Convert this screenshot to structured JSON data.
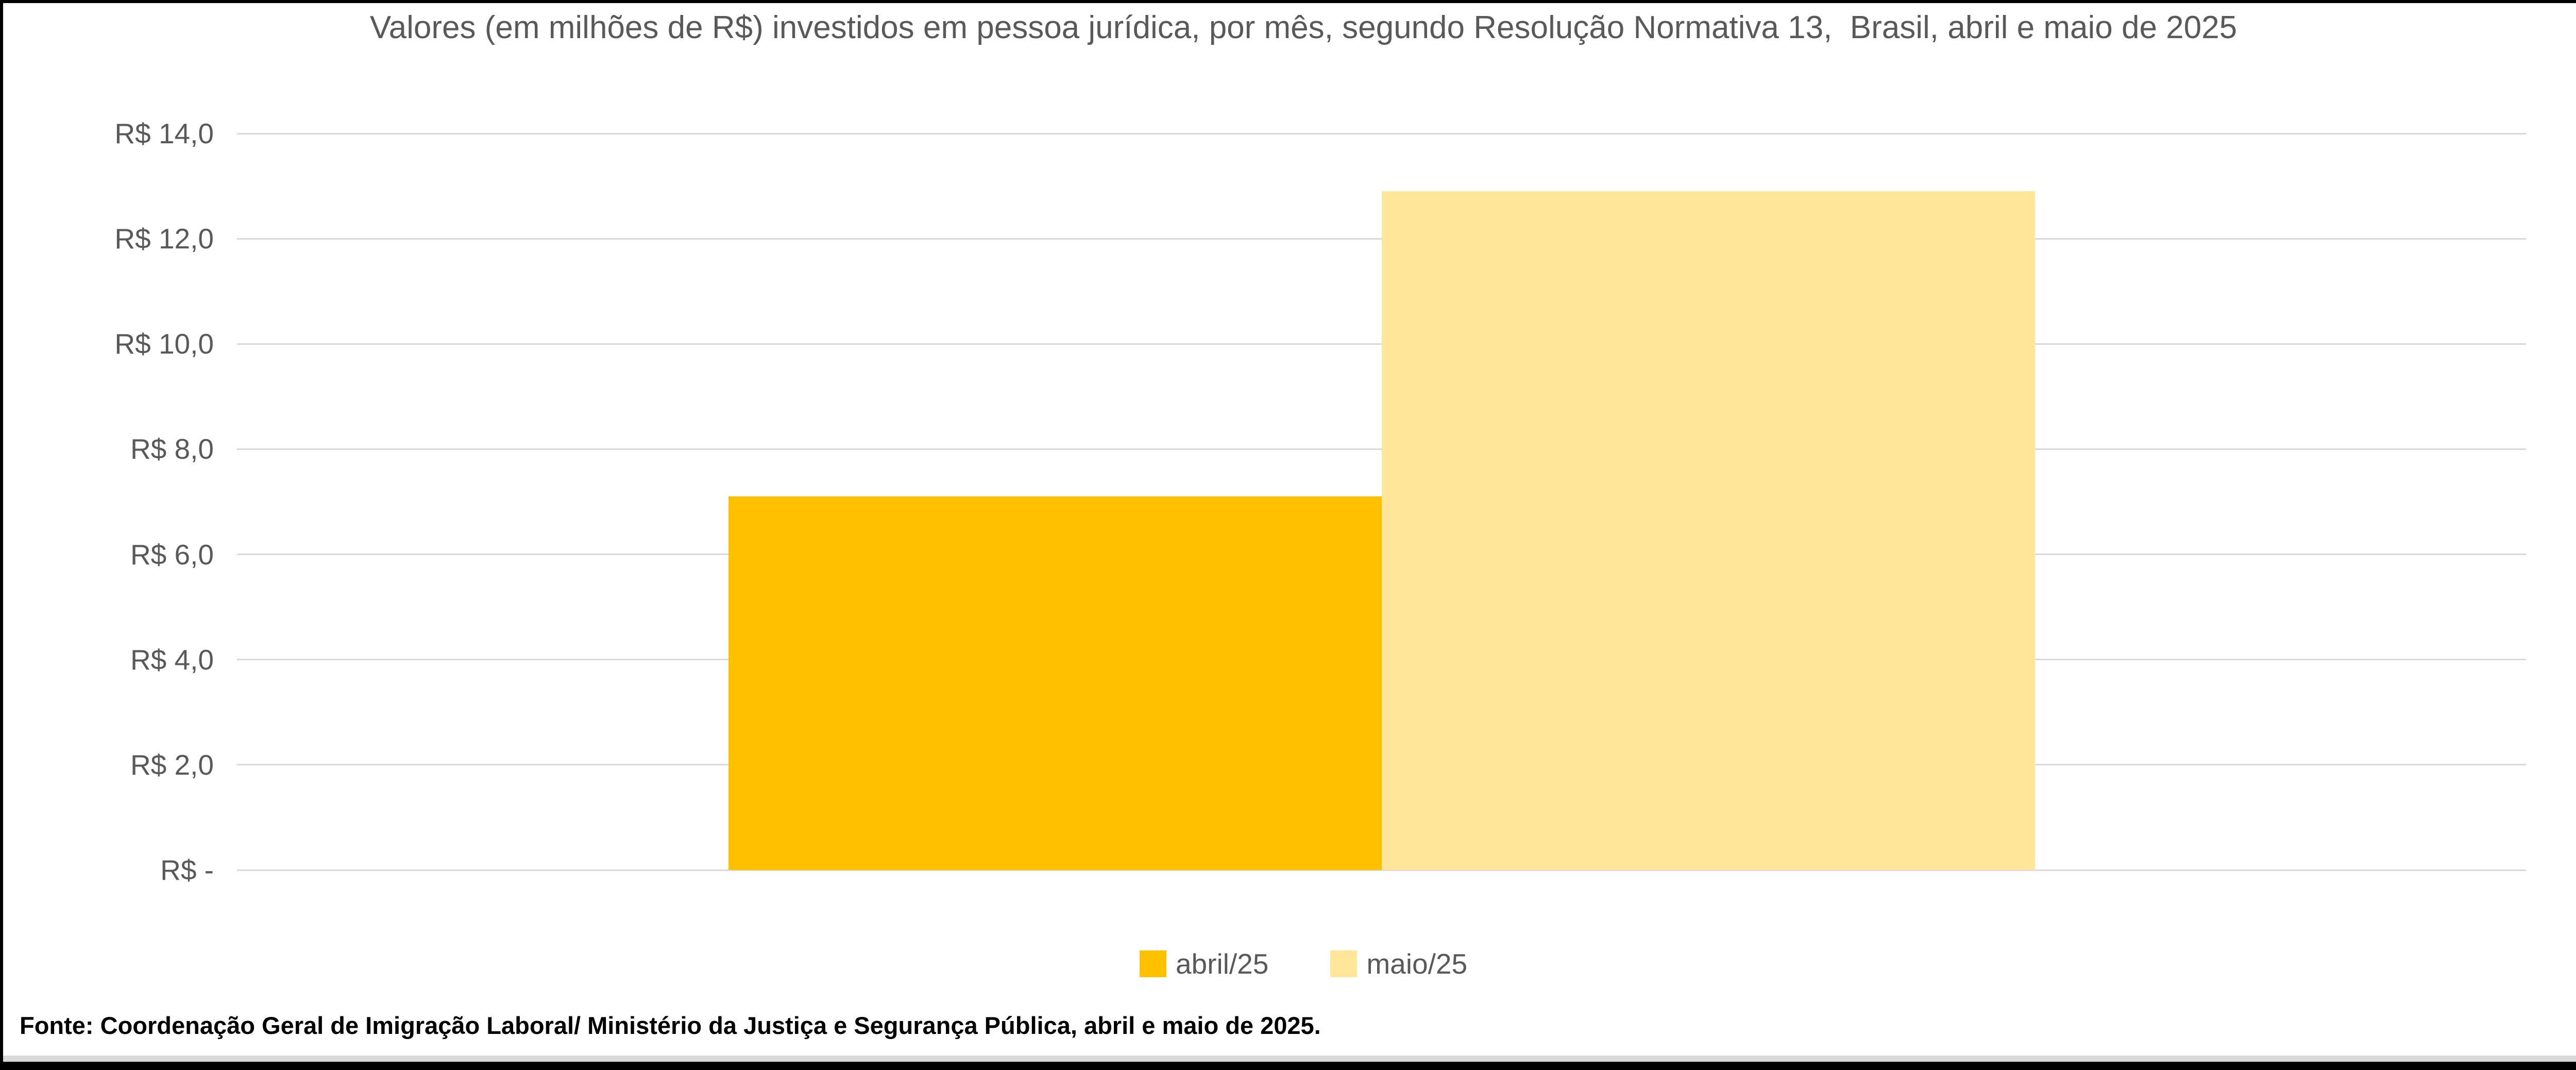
{
  "chart_data": {
    "type": "bar",
    "title": "Valores (em milhões de R$) investidos em pessoa jurídica, por mês, segundo Resolução Normativa 13,  Brasil, abril e maio de 2025",
    "categories": [
      ""
    ],
    "series": [
      {
        "name": "abril/25",
        "value": 7.1,
        "color": "#FFC000"
      },
      {
        "name": "maio/25",
        "value": 12.9,
        "color": "#FFE699"
      }
    ],
    "xlabel": "",
    "ylabel": "",
    "ylim": [
      0,
      14
    ],
    "yticks": [
      {
        "value": 14,
        "label": "R$ 14,0"
      },
      {
        "value": 12,
        "label": "R$ 12,0"
      },
      {
        "value": 10,
        "label": "R$ 10,0"
      },
      {
        "value": 8,
        "label": "R$ 8,0"
      },
      {
        "value": 6,
        "label": "R$ 6,0"
      },
      {
        "value": 4,
        "label": "R$ 4,0"
      },
      {
        "value": 2,
        "label": "R$ 2,0"
      },
      {
        "value": 0,
        "label": "R$ -"
      }
    ],
    "grid": true,
    "legend_position": "bottom"
  },
  "source_note": "Fonte: Coordenação Geral de Imigração Laboral/ Ministério da Justiça e Segurança Pública, abril e maio de 2025.",
  "colors": {
    "title_text": "#595959",
    "axis_text": "#595959",
    "legend_text": "#595959",
    "gridline": "#D9D9D9",
    "frame_border": "#000000",
    "source_text": "#000000",
    "background": "#FFFFFF"
  }
}
